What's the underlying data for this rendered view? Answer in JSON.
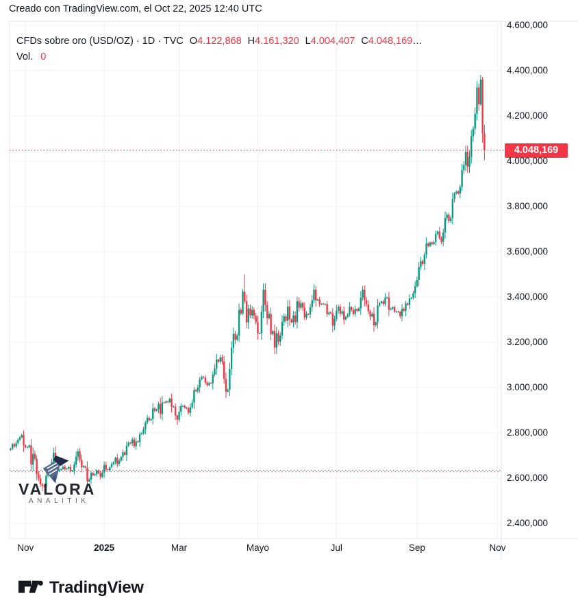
{
  "attribution": {
    "text": "Creado con TradingView.com, el Oct 22, 2025 12:40 UTC"
  },
  "legend": {
    "title": "CFDs sobre oro (USD/OZ) · 1D · TVC",
    "o_label": "O",
    "o_value": "4.122,868",
    "h_label": "H",
    "h_value": "4.161,320",
    "l_label": "L",
    "l_value": "4.004,407",
    "c_label": "C",
    "c_value": "4.048,169",
    "ellipsis": "…",
    "vol_label": "Vol.",
    "vol_value": "0"
  },
  "watermark": {
    "title": "VALORA",
    "subtitle": "ANALITIK"
  },
  "footer": {
    "brand": "TradingView"
  },
  "price_scale": {
    "last_label": "4.048,169",
    "last_price": 4048.169,
    "badge_color": "#f23645",
    "labels": [
      {
        "text": "4.600,000",
        "price": 4600
      },
      {
        "text": "4.400,000",
        "price": 4400
      },
      {
        "text": "4.200,000",
        "price": 4200
      },
      {
        "text": "4.000,000",
        "price": 4000
      },
      {
        "text": "3.800,000",
        "price": 3800
      },
      {
        "text": "3.600,000",
        "price": 3600
      },
      {
        "text": "3.400,000",
        "price": 3400
      },
      {
        "text": "3.200,000",
        "price": 3200
      },
      {
        "text": "3.000,000",
        "price": 3000
      },
      {
        "text": "2.800,000",
        "price": 2800
      },
      {
        "text": "2.600,000",
        "price": 2600
      },
      {
        "text": "2.400,000",
        "price": 2400
      }
    ]
  },
  "time_scale": {
    "ticks": [
      {
        "label": "Nov",
        "index": 8,
        "bold": false
      },
      {
        "label": "2025",
        "index": 50,
        "bold": true
      },
      {
        "label": "Mar",
        "index": 90,
        "bold": false
      },
      {
        "label": "Mayo",
        "index": 132,
        "bold": false
      },
      {
        "label": "Jul",
        "index": 174,
        "bold": false
      },
      {
        "label": "Sep",
        "index": 217,
        "bold": false
      },
      {
        "label": "Nov",
        "index": 260,
        "bold": false
      }
    ]
  },
  "chart_data": {
    "type": "candlestick",
    "symbol": "CFDs sobre oro (USD/OZ)",
    "interval": "1D",
    "exchange": "TVC",
    "title": "Gold CFD daily candles, Oct 2024 - Oct 2025",
    "ylim": [
      2333,
      4618
    ],
    "y_tick_step": 200,
    "grid": true,
    "colors": {
      "up": "#089981",
      "down": "#f23645"
    },
    "last_ohlc": {
      "open": 4122.868,
      "high": 4161.32,
      "low": 4004.407,
      "close": 4048.169
    },
    "first_open": 2725,
    "closes": [
      2730,
      2750,
      2740,
      2755,
      2770,
      2780,
      2790,
      2745,
      2737,
      2737,
      2745,
      2660,
      2707,
      2685,
      2618,
      2598,
      2573,
      2565,
      2563,
      2611,
      2631,
      2650,
      2670,
      2712,
      2626,
      2633,
      2636,
      2640,
      2650,
      2639,
      2643,
      2649,
      2632,
      2633,
      2660,
      2694,
      2718,
      2681,
      2648,
      2653,
      2646,
      2585,
      2594,
      2622,
      2613,
      2617,
      2633,
      2621,
      2606,
      2624,
      2658,
      2639,
      2636,
      2648,
      2662,
      2670,
      2690,
      2663,
      2677,
      2693,
      2714,
      2703,
      2744,
      2756,
      2754,
      2771,
      2741,
      2763,
      2759,
      2794,
      2798,
      2815,
      2844,
      2866,
      2856,
      2861,
      2908,
      2898,
      2904,
      2928,
      2883,
      2935,
      2933,
      2939,
      2936,
      2951,
      2915,
      2916,
      2877,
      2858,
      2893,
      2918,
      2919,
      2911,
      2909,
      2889,
      2913,
      2934,
      2989,
      2984,
      3001,
      3035,
      3047,
      3044,
      3022,
      3011,
      3020,
      3019,
      3057,
      3084,
      3124,
      3114,
      3133,
      3115,
      3038,
      2982,
      2990,
      3082,
      3176,
      3237,
      3211,
      3230,
      3343,
      3327,
      3424,
      3381,
      3288,
      3349,
      3319,
      3343,
      3317,
      3289,
      3239,
      3240,
      3334,
      3432,
      3365,
      3306,
      3325,
      3236,
      3250,
      3177,
      3240,
      3203,
      3230,
      3290,
      3315,
      3295,
      3358,
      3301,
      3288,
      3318,
      3289,
      3381,
      3353,
      3373,
      3353,
      3310,
      3326,
      3323,
      3355,
      3386,
      3432,
      3385,
      3389,
      3369,
      3370,
      3368,
      3368,
      3324,
      3332,
      3328,
      3274,
      3303,
      3339,
      3357,
      3326,
      3337,
      3301,
      3313,
      3323,
      3356,
      3343,
      3325,
      3347,
      3339,
      3350,
      3397,
      3432,
      3387,
      3368,
      3337,
      3314,
      3326,
      3275,
      3289,
      3363,
      3373,
      3381,
      3369,
      3397,
      3398,
      3344,
      3348,
      3355,
      3335,
      3336,
      3334,
      3315,
      3348,
      3339,
      3372,
      3365,
      3393,
      3397,
      3417,
      3448,
      3476,
      3533,
      3559,
      3546,
      3587,
      3636,
      3626,
      3641,
      3634,
      3643,
      3679,
      3689,
      3660,
      3644,
      3685,
      3748,
      3764,
      3736,
      3749,
      3833,
      3858,
      3866,
      3857,
      3886,
      3960,
      3983,
      4041,
      3976,
      4018,
      4110,
      4143,
      4209,
      4326,
      4251,
      4360,
      4123,
      4048.169
    ],
    "wick_overrides": {
      "17": [
        2580,
        2542
      ],
      "89": [
        2880,
        2835
      ],
      "124": [
        3435,
        3320
      ],
      "125": [
        3500,
        3370
      ],
      "251": [
        4381,
        4245
      ],
      "252": [
        4373,
        4082
      ]
    },
    "dotted_levels": [
      {
        "price": 2635,
        "color": "#089981"
      },
      {
        "price": 2628,
        "color": "#f23645"
      }
    ],
    "current_price_line": {
      "price": 4048.169,
      "color": "#f23645"
    }
  }
}
